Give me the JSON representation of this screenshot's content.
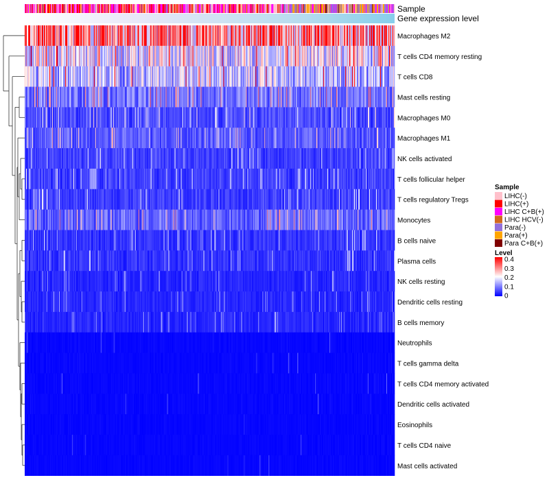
{
  "chart_data": {
    "type": "heatmap",
    "annotation_rows": [
      "Sample",
      "Gene expression level"
    ],
    "rows": [
      {
        "label": "Macrophages M2",
        "mean": 0.3
      },
      {
        "label": "T cells CD4 memory resting",
        "mean": 0.18
      },
      {
        "label": "T cells CD8",
        "mean": 0.15
      },
      {
        "label": "Mast cells resting",
        "mean": 0.09
      },
      {
        "label": "Macrophages M0",
        "mean": 0.06
      },
      {
        "label": "Macrophages M1",
        "mean": 0.07
      },
      {
        "label": "NK cells activated",
        "mean": 0.05
      },
      {
        "label": "T cells follicular helper",
        "mean": 0.05
      },
      {
        "label": "T cells regulatory  Tregs",
        "mean": 0.05
      },
      {
        "label": "Monocytes",
        "mean": 0.08
      },
      {
        "label": "B cells naive",
        "mean": 0.04
      },
      {
        "label": "Plasma cells",
        "mean": 0.04
      },
      {
        "label": "NK cells resting",
        "mean": 0.03
      },
      {
        "label": "Dendritic cells resting",
        "mean": 0.03
      },
      {
        "label": "B cells memory",
        "mean": 0.03
      },
      {
        "label": "Neutrophils",
        "mean": 0.01
      },
      {
        "label": "T cells gamma delta",
        "mean": 0.01
      },
      {
        "label": "T cells CD4 memory activated",
        "mean": 0.01
      },
      {
        "label": "Dendritic cells activated",
        "mean": 0.01
      },
      {
        "label": "Eosinophils",
        "mean": 0.005
      },
      {
        "label": "T cells CD4 naive",
        "mean": 0.005
      },
      {
        "label": "Mast cells activated",
        "mean": 0.005
      }
    ],
    "n_samples": 540,
    "legend_sample": {
      "title": "Sample",
      "entries": [
        {
          "label": "LIHC(-)",
          "color": "#ffc0cb"
        },
        {
          "label": "LIHC(+)",
          "color": "#ff0000"
        },
        {
          "label": "LIHC C+B(+)",
          "color": "#ff00ff"
        },
        {
          "label": "LIHC HCV(-)",
          "color": "#d2691e"
        },
        {
          "label": "Para(-)",
          "color": "#9370db"
        },
        {
          "label": "Para(+)",
          "color": "#ffa500"
        },
        {
          "label": "Para C+B(+)",
          "color": "#800000"
        }
      ]
    },
    "legend_level": {
      "title": "Level",
      "ticks": [
        "0.4",
        "0.3",
        "0.2",
        "0.1",
        "0"
      ],
      "range": [
        0,
        0.4
      ],
      "colors": [
        "#0000ff",
        "#ffffff",
        "#ff0000"
      ]
    },
    "level_bar_color": "#87ceeb"
  }
}
